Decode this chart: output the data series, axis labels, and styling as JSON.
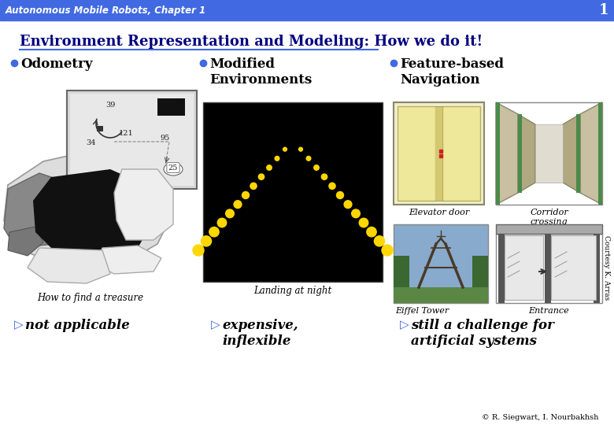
{
  "header_bg": "#4169E1",
  "header_text": "Autonomous Mobile Robots, Chapter 1",
  "header_text_color": "#FFFFFF",
  "slide_number": "1",
  "slide_bg": "#FFFFFF",
  "title": "Environment Representation and Modeling: How we do it!",
  "title_color": "#000080",
  "title_underline_color": "#4169E1",
  "bullet_color": "#4169E1",
  "col1_header": "Odometry",
  "col2_header": "Modified\nEnvironments",
  "col3_header": "Feature-based\nNavigation",
  "col1_caption": "How to find a treasure",
  "col1_result": "not applicable",
  "col2_caption": "Landing at night",
  "col2_result": "expensive,\ninflexible",
  "col3_label_elev": "Elevator door",
  "col3_label_corr": "Corridor\ncrossing",
  "col3_label_entr": "Entrance",
  "col3_caption": "Eiffel Tower",
  "col3_result": "still a challenge for\nartificial systems",
  "footer": "© R. Siegwart, I. Nourbakhsh",
  "courtesy": "Courtesy K. Arras",
  "arrow_color": "#4169E1"
}
